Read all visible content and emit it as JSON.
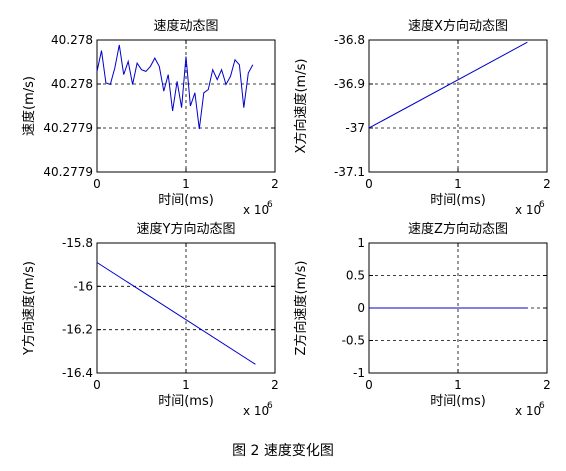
{
  "caption": "图 2 速度变化图",
  "chart_data": [
    {
      "type": "line",
      "title": "速度动态图",
      "xlabel": "时间(ms)",
      "ylabel": "速度(m/s)",
      "x_multiplier_label": "x 10",
      "x_multiplier_exponent": "6",
      "xlim": [
        0,
        2
      ],
      "ylim": [
        0,
        4
      ],
      "xticks": [
        "0",
        "1",
        "2"
      ],
      "yticks": [
        "40.2779",
        "40.2779",
        "40.278",
        "40.278"
      ],
      "grid": true,
      "line_color": "#0000cc",
      "series": [
        {
          "x": [
            0,
            0.05,
            0.1,
            0.15,
            0.2,
            0.25,
            0.3,
            0.35,
            0.4,
            0.45,
            0.5,
            0.55,
            0.6,
            0.65,
            0.7,
            0.75,
            0.8,
            0.85,
            0.9,
            0.95,
            1.0,
            1.05,
            1.1,
            1.15,
            1.2,
            1.25,
            1.3,
            1.35,
            1.4,
            1.45,
            1.5,
            1.55,
            1.6,
            1.65,
            1.7,
            1.75
          ],
          "y": [
            3.05,
            3.68,
            2.7,
            2.65,
            3.15,
            3.85,
            2.95,
            3.35,
            2.65,
            3.3,
            3.1,
            3.05,
            3.2,
            3.45,
            3.2,
            2.45,
            2.95,
            1.85,
            2.75,
            1.95,
            3.5,
            2.0,
            2.4,
            1.3,
            2.4,
            2.5,
            3.1,
            2.8,
            3.1,
            2.65,
            2.9,
            3.4,
            3.25,
            1.95,
            3.0,
            3.25
          ]
        }
      ]
    },
    {
      "type": "line",
      "title": "速度X方向动态图",
      "xlabel": "时间(ms)",
      "ylabel": "X方向速度(m/s)",
      "x_multiplier_label": "x 10",
      "x_multiplier_exponent": "6",
      "xlim": [
        0,
        2
      ],
      "ylim": [
        -37.1,
        -36.8
      ],
      "xticks": [
        "0",
        "1",
        "2"
      ],
      "yticks": [
        "-37.1",
        "-37",
        "-36.9",
        "-36.8"
      ],
      "ytick_values": [
        -37.1,
        -37,
        -36.9,
        -36.8
      ],
      "grid": true,
      "line_color": "#0000cc",
      "series": [
        {
          "x": [
            0,
            1.78
          ],
          "y": [
            -37.0,
            -36.805
          ]
        }
      ]
    },
    {
      "type": "line",
      "title": "速度Y方向动态图",
      "xlabel": "时间(ms)",
      "ylabel": "Y方向速度(m/s)",
      "x_multiplier_label": "x 10",
      "x_multiplier_exponent": "6",
      "xlim": [
        0,
        2
      ],
      "ylim": [
        -16.4,
        -15.8
      ],
      "xticks": [
        "0",
        "1",
        "2"
      ],
      "yticks": [
        "-16.4",
        "-16.2",
        "-16",
        "-15.8"
      ],
      "ytick_values": [
        -16.4,
        -16.2,
        -16.0,
        -15.8
      ],
      "grid": true,
      "line_color": "#0000cc",
      "series": [
        {
          "x": [
            0,
            1.78
          ],
          "y": [
            -15.89,
            -16.36
          ]
        }
      ]
    },
    {
      "type": "line",
      "title": "速度Z方向动态图",
      "xlabel": "时间(ms)",
      "ylabel": "Z方向速度(m/s)",
      "x_multiplier_label": "x 10",
      "x_multiplier_exponent": "6",
      "xlim": [
        0,
        2
      ],
      "ylim": [
        -1,
        1
      ],
      "xticks": [
        "0",
        "1",
        "2"
      ],
      "yticks": [
        "-1",
        "-0.5",
        "0",
        "0.5",
        "1"
      ],
      "ytick_values": [
        -1,
        -0.5,
        0,
        0.5,
        1
      ],
      "grid": true,
      "line_color": "#0000cc",
      "series": [
        {
          "x": [
            0,
            1.78
          ],
          "y": [
            0,
            0
          ]
        }
      ]
    }
  ]
}
